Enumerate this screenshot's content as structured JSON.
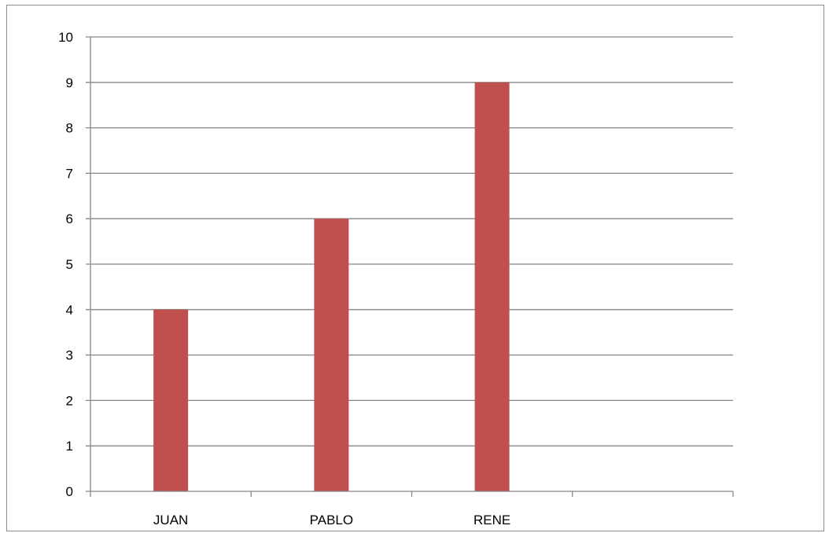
{
  "chart_data": {
    "type": "bar",
    "categories": [
      "JUAN",
      "PABLO",
      "RENE",
      ""
    ],
    "values": [
      4,
      6,
      9,
      null
    ],
    "title": "",
    "xlabel": "",
    "ylabel": "",
    "ylim": [
      0,
      10
    ],
    "yticks": [
      "0",
      "1",
      "2",
      "3",
      "4",
      "5",
      "6",
      "7",
      "8",
      "9",
      "10"
    ],
    "grid": true,
    "legend": "none",
    "colors": {
      "bar": "#c0504d",
      "grid": "#868686",
      "axis": "#868686",
      "frame": "#8c8c8c"
    }
  }
}
